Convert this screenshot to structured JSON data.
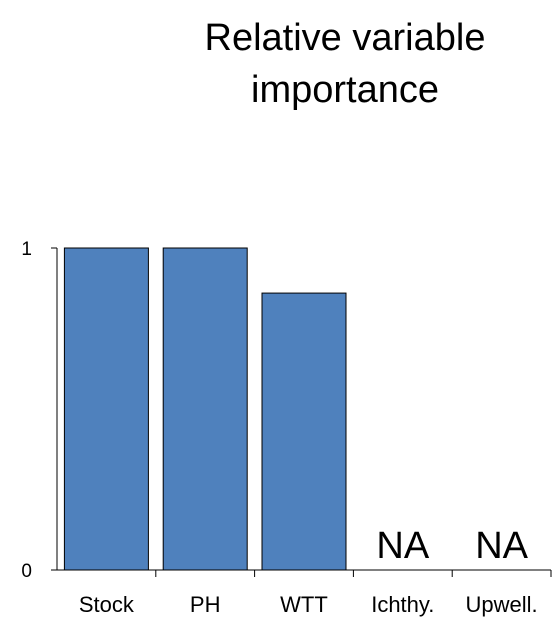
{
  "chart_data": {
    "type": "bar",
    "title_lines": [
      "Relative variable",
      "importance"
    ],
    "categories": [
      "Stock",
      "PH",
      "WTT",
      "Ichthy.",
      "Upwell."
    ],
    "values": [
      1.0,
      1.0,
      0.86,
      null,
      null
    ],
    "missing_label": "NA",
    "xlabel": "",
    "ylabel": "",
    "ylim": [
      0,
      1
    ],
    "yticks": [
      "0",
      "1"
    ],
    "grid": false,
    "bar_color": "#4f81bd",
    "bar_edge_color": "#000000"
  }
}
